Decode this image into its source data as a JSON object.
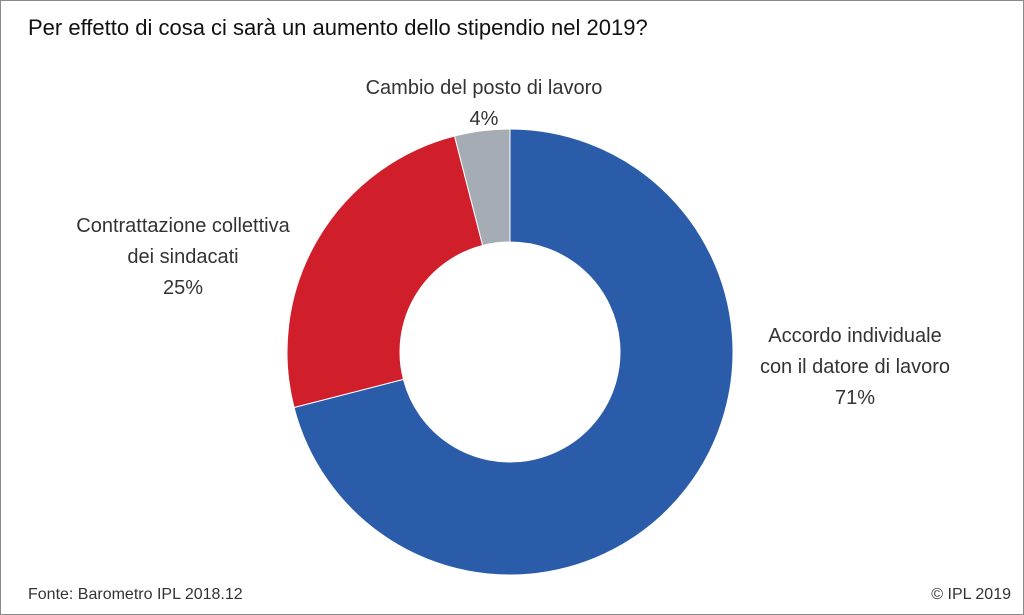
{
  "title": "Per effetto di cosa ci sarà un aumento dello stipendio nel 2019?",
  "footer": {
    "source": "Fonte: Barometro IPL 2018.12",
    "copyright": "© IPL 2019"
  },
  "chart_data": {
    "type": "pie",
    "donut": true,
    "title": "Per effetto di cosa ci sarà un aumento dello stipendio nel 2019?",
    "slices": [
      {
        "label_lines": [
          "Accordo individuale",
          "con il datore di lavoro"
        ],
        "value": 71,
        "value_label": "71%",
        "color": "#2b5caa"
      },
      {
        "label_lines": [
          "Contrattazione  collettiva",
          "dei sindacati"
        ],
        "value": 25,
        "value_label": "25%",
        "color": "#d01f2a"
      },
      {
        "label_lines": [
          "Cambio del posto di lavoro"
        ],
        "value": 4,
        "value_label": "4%",
        "color": "#a6acb4"
      }
    ]
  }
}
